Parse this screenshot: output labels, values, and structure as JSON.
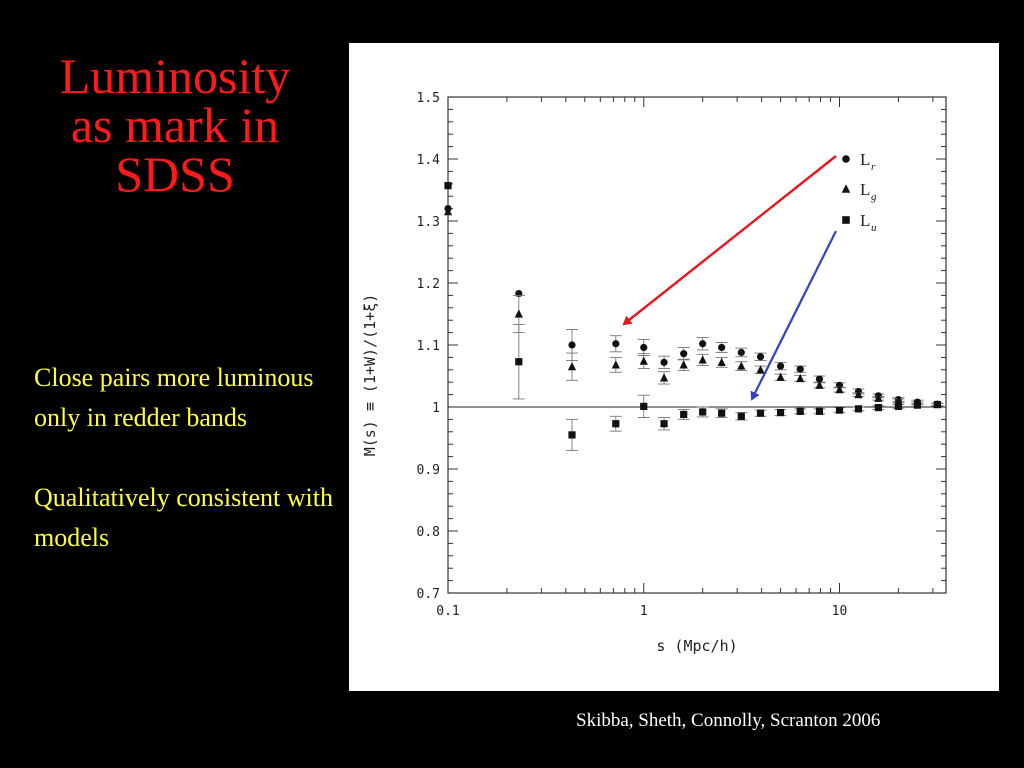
{
  "slide": {
    "title_lines": [
      "Luminosity",
      "as mark in",
      "SDSS"
    ],
    "bullets": [
      "Close pairs more luminous only in redder bands",
      "Qualitatively consistent with models"
    ],
    "citation": "Skibba, Sheth, Connolly, Scranton 2006",
    "colors": {
      "background": "#000000",
      "title": "#ff1a1a",
      "bullets": "#ffff33",
      "citation": "#ffffff",
      "arrow_red": "#e8141e",
      "arrow_blue": "#3340c8"
    }
  },
  "chart_data": {
    "type": "scatter",
    "xlabel": "s (Mpc/h)",
    "ylabel": "M(s) ≡ (1+W)/(1+ξ)",
    "xscale": "log",
    "xlim": [
      0.1,
      35
    ],
    "ylim": [
      0.7,
      1.5
    ],
    "x_ticks": [
      0.1,
      1,
      10
    ],
    "x_tick_labels": [
      "0.1",
      "1",
      "10"
    ],
    "y_ticks": [
      0.7,
      0.8,
      0.9,
      1.0,
      1.1,
      1.2,
      1.3,
      1.4,
      1.5
    ],
    "y_tick_labels": [
      "0.7",
      "0.8",
      "0.9",
      "1",
      "1.1",
      "1.2",
      "1.3",
      "1.4",
      "1.5"
    ],
    "reference_line_y": 1.0,
    "legend_position": "top-right",
    "series": [
      {
        "name": "L",
        "subscript": "r",
        "marker": "circle",
        "points": [
          {
            "x": 0.1,
            "y": 1.32
          },
          {
            "x": 0.23,
            "y": 1.183
          },
          {
            "x": 0.43,
            "y": 1.1,
            "err": 0.025
          },
          {
            "x": 0.72,
            "y": 1.102,
            "err": 0.013
          },
          {
            "x": 1.0,
            "y": 1.096,
            "err": 0.013
          },
          {
            "x": 1.27,
            "y": 1.072,
            "err": 0.01
          },
          {
            "x": 1.6,
            "y": 1.086,
            "err": 0.01
          },
          {
            "x": 2.0,
            "y": 1.102,
            "err": 0.01
          },
          {
            "x": 2.5,
            "y": 1.096,
            "err": 0.008
          },
          {
            "x": 3.15,
            "y": 1.088,
            "err": 0.007
          },
          {
            "x": 3.95,
            "y": 1.081,
            "err": 0.006
          },
          {
            "x": 5.0,
            "y": 1.066,
            "err": 0.006
          },
          {
            "x": 6.3,
            "y": 1.061,
            "err": 0.005
          },
          {
            "x": 7.9,
            "y": 1.045,
            "err": 0.005
          },
          {
            "x": 10.0,
            "y": 1.035,
            "err": 0.004
          },
          {
            "x": 12.5,
            "y": 1.025,
            "err": 0.004
          },
          {
            "x": 15.8,
            "y": 1.018,
            "err": 0.003
          },
          {
            "x": 20.0,
            "y": 1.012,
            "err": 0.003
          },
          {
            "x": 25.0,
            "y": 1.008,
            "err": 0.003
          },
          {
            "x": 31.6,
            "y": 1.004,
            "err": 0.002
          }
        ]
      },
      {
        "name": "L",
        "subscript": "g",
        "marker": "triangle",
        "points": [
          {
            "x": 0.1,
            "y": 1.315
          },
          {
            "x": 0.23,
            "y": 1.15,
            "err": 0.03
          },
          {
            "x": 0.43,
            "y": 1.065,
            "err": 0.022
          },
          {
            "x": 0.72,
            "y": 1.068,
            "err": 0.012
          },
          {
            "x": 1.0,
            "y": 1.074,
            "err": 0.012
          },
          {
            "x": 1.27,
            "y": 1.047,
            "err": 0.01
          },
          {
            "x": 1.6,
            "y": 1.068,
            "err": 0.009
          },
          {
            "x": 2.0,
            "y": 1.076,
            "err": 0.009
          },
          {
            "x": 2.5,
            "y": 1.072,
            "err": 0.008
          },
          {
            "x": 3.15,
            "y": 1.066,
            "err": 0.007
          },
          {
            "x": 3.95,
            "y": 1.06,
            "err": 0.006
          },
          {
            "x": 5.0,
            "y": 1.048,
            "err": 0.005
          },
          {
            "x": 6.3,
            "y": 1.046,
            "err": 0.005
          },
          {
            "x": 7.9,
            "y": 1.035,
            "err": 0.004
          },
          {
            "x": 10.0,
            "y": 1.028,
            "err": 0.004
          },
          {
            "x": 12.5,
            "y": 1.02,
            "err": 0.003
          },
          {
            "x": 15.8,
            "y": 1.014,
            "err": 0.003
          },
          {
            "x": 20.0,
            "y": 1.01,
            "err": 0.003
          },
          {
            "x": 25.0,
            "y": 1.006,
            "err": 0.002
          },
          {
            "x": 31.6,
            "y": 1.004,
            "err": 0.002
          }
        ]
      },
      {
        "name": "L",
        "subscript": "u",
        "marker": "square",
        "points": [
          {
            "x": 0.1,
            "y": 1.357
          },
          {
            "x": 0.23,
            "y": 1.073,
            "err": 0.06
          },
          {
            "x": 0.43,
            "y": 0.955,
            "err": 0.025
          },
          {
            "x": 0.72,
            "y": 0.973,
            "err": 0.012
          },
          {
            "x": 1.0,
            "y": 1.001,
            "err": 0.018
          },
          {
            "x": 1.27,
            "y": 0.973,
            "err": 0.01
          },
          {
            "x": 1.6,
            "y": 0.988,
            "err": 0.008
          },
          {
            "x": 2.0,
            "y": 0.992,
            "err": 0.008
          },
          {
            "x": 2.5,
            "y": 0.99,
            "err": 0.007
          },
          {
            "x": 3.15,
            "y": 0.985,
            "err": 0.006
          },
          {
            "x": 3.95,
            "y": 0.99,
            "err": 0.005
          },
          {
            "x": 5.0,
            "y": 0.991,
            "err": 0.005
          },
          {
            "x": 6.3,
            "y": 0.993,
            "err": 0.004
          },
          {
            "x": 7.9,
            "y": 0.993,
            "err": 0.004
          },
          {
            "x": 10.0,
            "y": 0.995,
            "err": 0.004
          },
          {
            "x": 12.5,
            "y": 0.997,
            "err": 0.003
          },
          {
            "x": 15.8,
            "y": 0.999,
            "err": 0.003
          },
          {
            "x": 20.0,
            "y": 1.001,
            "err": 0.003
          },
          {
            "x": 25.0,
            "y": 1.003,
            "err": 0.002
          },
          {
            "x": 31.6,
            "y": 1.004,
            "err": 0.002
          }
        ]
      }
    ]
  }
}
